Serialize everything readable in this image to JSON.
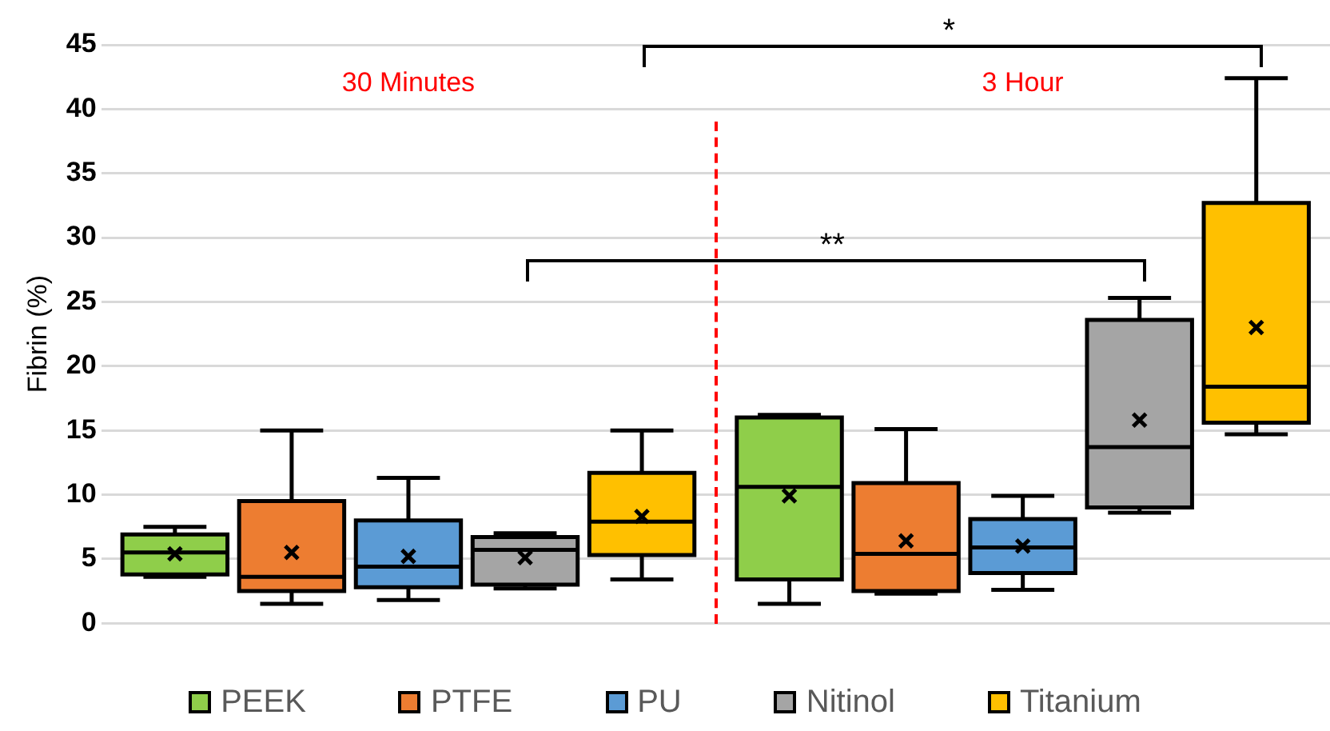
{
  "chart_data": {
    "type": "box",
    "ylabel": "Fibrin (%)",
    "categories": [
      null,
      null
    ],
    "series": [
      {
        "name": "PEEK",
        "color": "#8fce4a",
        "boxes": [
          {
            "low": 3.6,
            "q1": 3.8,
            "median": 5.5,
            "q3": 6.9,
            "high": 7.5,
            "mean": 5.4
          },
          {
            "low": 1.5,
            "q1": 3.4,
            "median": 10.6,
            "q3": 16.0,
            "high": 16.2,
            "mean": 9.9
          }
        ]
      },
      {
        "name": "PTFE",
        "color": "#ed7d31",
        "boxes": [
          {
            "low": 1.5,
            "q1": 2.5,
            "median": 3.6,
            "q3": 9.5,
            "high": 15.0,
            "mean": 5.5
          },
          {
            "low": 2.3,
            "q1": 2.5,
            "median": 5.4,
            "q3": 10.9,
            "high": 15.1,
            "mean": 6.4
          }
        ]
      },
      {
        "name": "PU",
        "color": "#5b9bd5",
        "boxes": [
          {
            "low": 1.8,
            "q1": 2.8,
            "median": 4.4,
            "q3": 8.0,
            "high": 11.3,
            "mean": 5.2
          },
          {
            "low": 2.6,
            "q1": 3.9,
            "median": 5.9,
            "q3": 8.1,
            "high": 9.9,
            "mean": 6.0
          }
        ]
      },
      {
        "name": "Nitinol",
        "color": "#a5a5a5",
        "boxes": [
          {
            "low": 2.7,
            "q1": 3.0,
            "median": 5.7,
            "q3": 6.7,
            "high": 7.0,
            "mean": 5.1
          },
          {
            "low": 8.6,
            "q1": 9.0,
            "median": 13.7,
            "q3": 23.6,
            "high": 25.3,
            "mean": 15.8
          }
        ]
      },
      {
        "name": "Titanium",
        "color": "#ffc000",
        "boxes": [
          {
            "low": 3.4,
            "q1": 5.3,
            "median": 7.9,
            "q3": 11.7,
            "high": 15.0,
            "mean": 8.3
          },
          {
            "low": 14.7,
            "q1": 15.6,
            "median": 18.4,
            "q3": 32.7,
            "high": 42.4,
            "mean": 23.0
          }
        ]
      }
    ],
    "ylim": [
      0,
      45
    ],
    "yticks": [
      0,
      5,
      10,
      15,
      20,
      25,
      30,
      35,
      40,
      45
    ],
    "grid": "y",
    "legend": "bottom",
    "marker": "cross",
    "annotations": [
      "30 Minutes",
      "3 Hour",
      "**",
      "*"
    ]
  }
}
